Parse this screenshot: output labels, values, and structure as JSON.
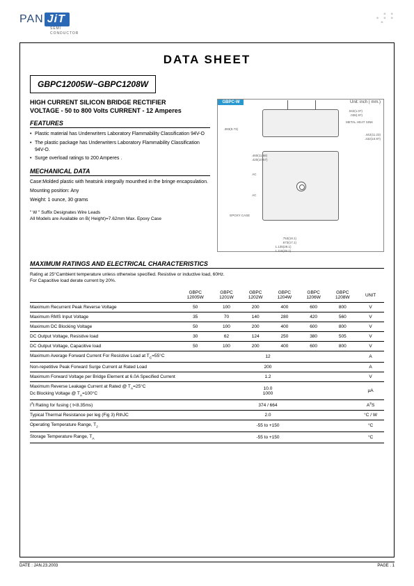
{
  "logo": {
    "pan": "PAN",
    "jit": "JiT",
    "sub1": "SEMI",
    "sub2": "CONDUCTOR"
  },
  "title": "DATA  SHEET",
  "part_range": "GBPC12005W~GBPC1208W",
  "subtitle1": "HIGH CURRENT SILICON BRIDGE RECTIFIER",
  "subtitle2": "VOLTAGE - 50 to 800 Volts  CURRENT - 12 Amperes",
  "diagram": {
    "label": "GBPC-W",
    "unit": "Unit: inch ( mm.)",
    "d1": ".042(1.07)",
    "d1b": ".038(.97)",
    "d2": ".442(11.23)",
    "d2b": ".432(10.97)",
    "d3": ".460(11.68)",
    "d3b": ".420(10.67)",
    "d4": ".753(19.1)",
    "d4b": ".673(17.1)",
    "d5": "1.135(28.1)",
    "d5b": "1.115(28.1)",
    "side": ".383(9.73)",
    "ac": "AC",
    "heatsink": "METAL HEAT SINK",
    "epoxy": "EPOXY CASE"
  },
  "features": {
    "head": "FEATURES",
    "items": [
      "Plastic material has Underwriters Laboratory Flammability Classification 94V-O",
      "The plastic package has Underwriters Laboratory Flammability Classification 94V-O.",
      "Surge overload ratings to 200 Amperes ."
    ]
  },
  "mech": {
    "head": "MECHANICAL DATA",
    "lines": [
      "Case:Molded plastic with heatsink integrally mounthed in the bringe encapsulation.",
      "Mounting position: Any",
      "Weight: 1 ounce, 30 grams"
    ]
  },
  "notes": [
    "\" W \"  Suffix Designates Wire Leads",
    "All Models are Available on B( Height)=7.62mm Max. Epoxy Case"
  ],
  "ratings": {
    "head": "MAXIMUM RATINGS AND ELECTRICAL CHARACTERISTICS",
    "note1": "Rating at 25°Cambient temperature unless otherwise specified. Resistive or inductive load, 60Hz.",
    "note2": "For Capacitive load derate current by 20%.",
    "columns": [
      "GBPC 12005W",
      "GBPC 1201W",
      "GBPC 1202W",
      "GBPC 1204W",
      "GBPC 1206W",
      "GBPC 1208W",
      "UNIT"
    ],
    "rows": [
      {
        "p": "Maximum Recurrent Peak Reverse Voltage",
        "v": [
          "50",
          "100",
          "200",
          "400",
          "600",
          "800"
        ],
        "u": "V"
      },
      {
        "p": "Maximum RMS Input Voltage",
        "v": [
          "35",
          "70",
          "140",
          "280",
          "420",
          "560"
        ],
        "u": "V"
      },
      {
        "p": "Maximum DC Blocking Voltage",
        "v": [
          "50",
          "100",
          "200",
          "400",
          "600",
          "800"
        ],
        "u": "V"
      },
      {
        "p": "DC Output Voltage, Resistive load",
        "v": [
          "30",
          "62",
          "124",
          "250",
          "380",
          "505"
        ],
        "u": "V"
      },
      {
        "p": "DC Output Voltage, Capacitive load",
        "v": [
          "50",
          "100",
          "200",
          "400",
          "600",
          "800"
        ],
        "u": "V"
      },
      {
        "p": "Maximum Average Forward Current For Resistive Load at TC=55°C",
        "span": "12",
        "u": "A"
      },
      {
        "p": "Non-repetitive Peak Forward Surge Current at Rated Load",
        "span": "200",
        "u": "A"
      },
      {
        "p": "Maximum Forward Voltage per Bridge Element at 6.0A Specified Current",
        "span": "1.2",
        "u": "V"
      },
      {
        "p": "Maximum Reverse Leakage Current at Rated @ TA=25°C\nDc Blocking Voltage @ TA=100°C",
        "span": "10.0\n1000",
        "u": "µA"
      },
      {
        "p": "I²t Rating for fusing ( t<8.35ms)",
        "span": "374 / 664",
        "u": "A²S"
      },
      {
        "p": "Typical Thermal Resistance per leg (Fig 3) RthJC",
        "span": "2.0",
        "u": "°C  / W"
      },
      {
        "p": "Operating Temperature Range, TJ",
        "span": "-55  to  +150",
        "u": "°C"
      },
      {
        "p": "Storage Temperature Range, TA",
        "span": "-55  to  +150",
        "u": "°C"
      }
    ]
  },
  "footer": {
    "date": "DATE : JAN.23.2003",
    "page": "PAGE .  1"
  }
}
